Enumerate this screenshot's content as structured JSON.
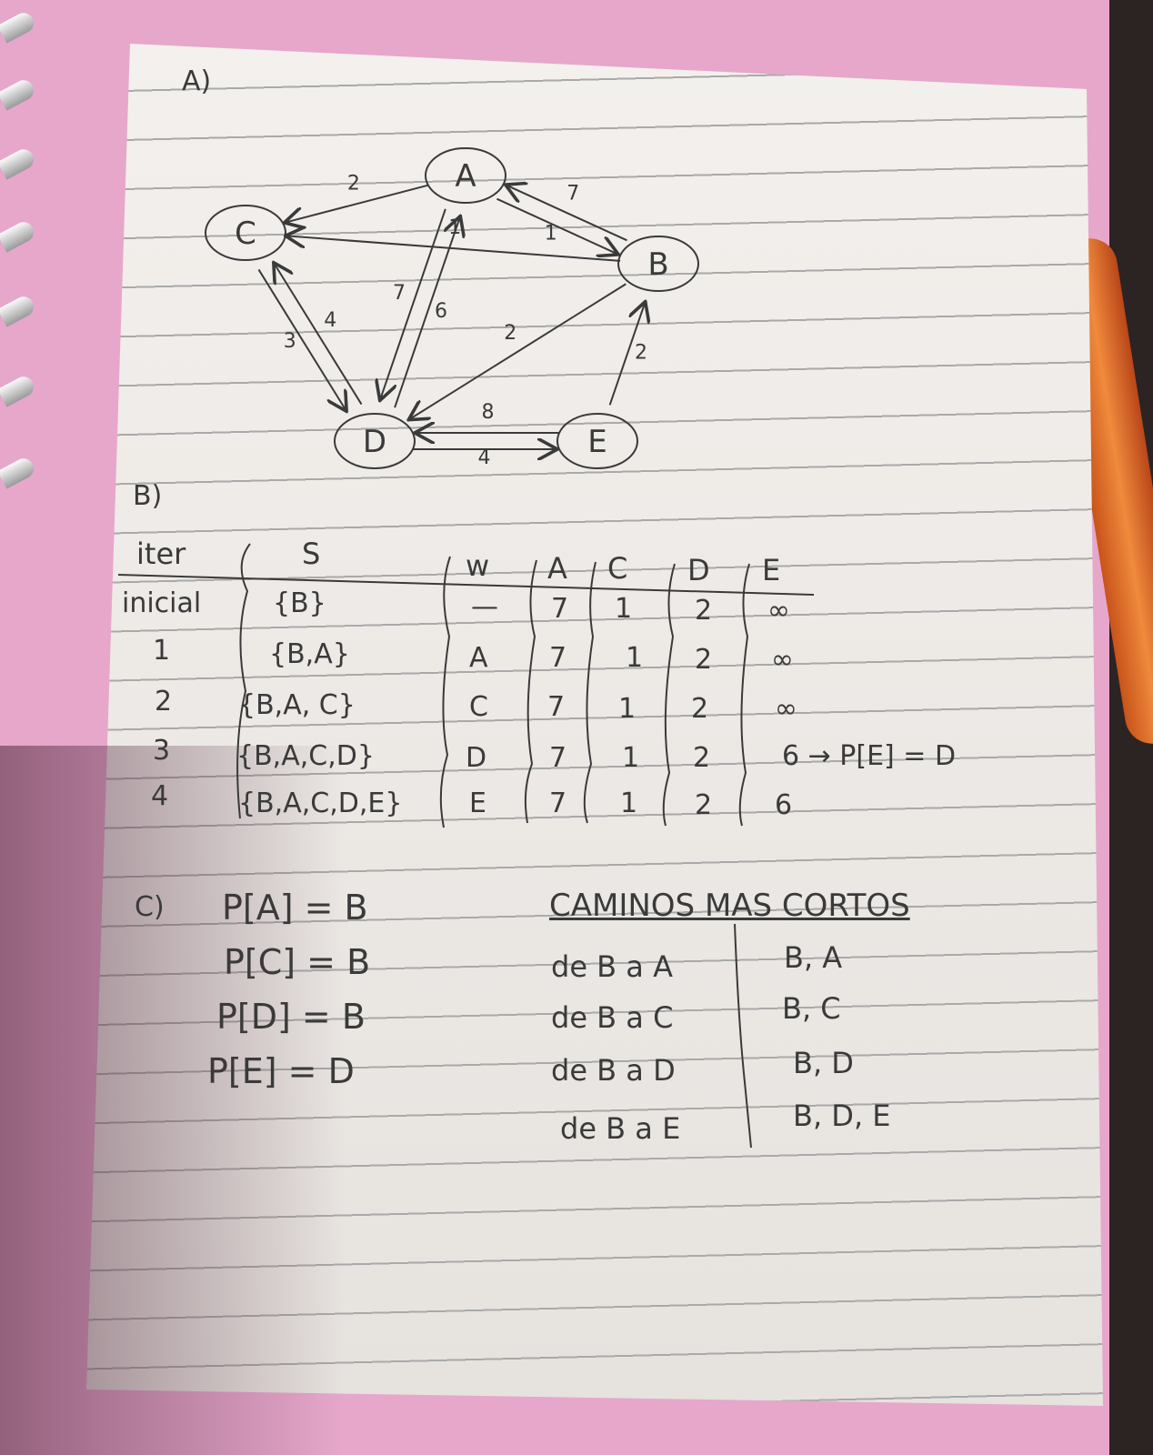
{
  "sections": {
    "a_label": "A)",
    "b_label": "B)",
    "c_label": "C)"
  },
  "graph": {
    "nodes": [
      {
        "id": "A",
        "label": "A"
      },
      {
        "id": "B",
        "label": "B"
      },
      {
        "id": "C",
        "label": "C"
      },
      {
        "id": "D",
        "label": "D"
      },
      {
        "id": "E",
        "label": "E"
      }
    ],
    "edges": [
      {
        "from": "A",
        "to": "C",
        "weight": "2"
      },
      {
        "from": "A",
        "to": "B",
        "weight": "1"
      },
      {
        "from": "B",
        "to": "A",
        "weight": "7"
      },
      {
        "from": "B",
        "to": "C",
        "weight": "1"
      },
      {
        "from": "A",
        "to": "D",
        "weight": "7"
      },
      {
        "from": "D",
        "to": "A",
        "weight": "6"
      },
      {
        "from": "C",
        "to": "D",
        "weight": "3"
      },
      {
        "from": "D",
        "to": "C",
        "weight": "4"
      },
      {
        "from": "B",
        "to": "D",
        "weight": "2"
      },
      {
        "from": "E",
        "to": "B",
        "weight": "2"
      },
      {
        "from": "D",
        "to": "E",
        "weight": "4"
      },
      {
        "from": "E",
        "to": "D",
        "weight": "8"
      }
    ]
  },
  "table": {
    "headers": [
      "iter",
      "S",
      "w",
      "A",
      "C",
      "D",
      "E"
    ],
    "rows": [
      [
        "inicial",
        "{B}",
        "—",
        "7",
        "1",
        "2",
        "∞"
      ],
      [
        "1",
        "{B,A}",
        "A",
        "7",
        "1",
        "2",
        "∞"
      ],
      [
        "2",
        "{B,A, C}",
        "C",
        "7",
        "1",
        "2",
        "∞"
      ],
      [
        "3",
        "{B,A,C,D}",
        "D",
        "7",
        "1",
        "2",
        "6 → P[E] = D"
      ],
      [
        "4",
        "{B,A,C,D,E}",
        "E",
        "7",
        "1",
        "2",
        "6"
      ]
    ]
  },
  "predecessors": [
    "P[A] = B",
    "P[C] = B",
    "P[D] = B",
    "P[E] = D"
  ],
  "shortest_paths": {
    "title": "CAMINOS MAS CORTOS",
    "rows": [
      {
        "route": "de B a A",
        "path": "B, A"
      },
      {
        "route": "de B a C",
        "path": "B, C"
      },
      {
        "route": "de B a D",
        "path": "B, D"
      },
      {
        "route": "de B a E",
        "path": "B, D, E"
      }
    ]
  }
}
